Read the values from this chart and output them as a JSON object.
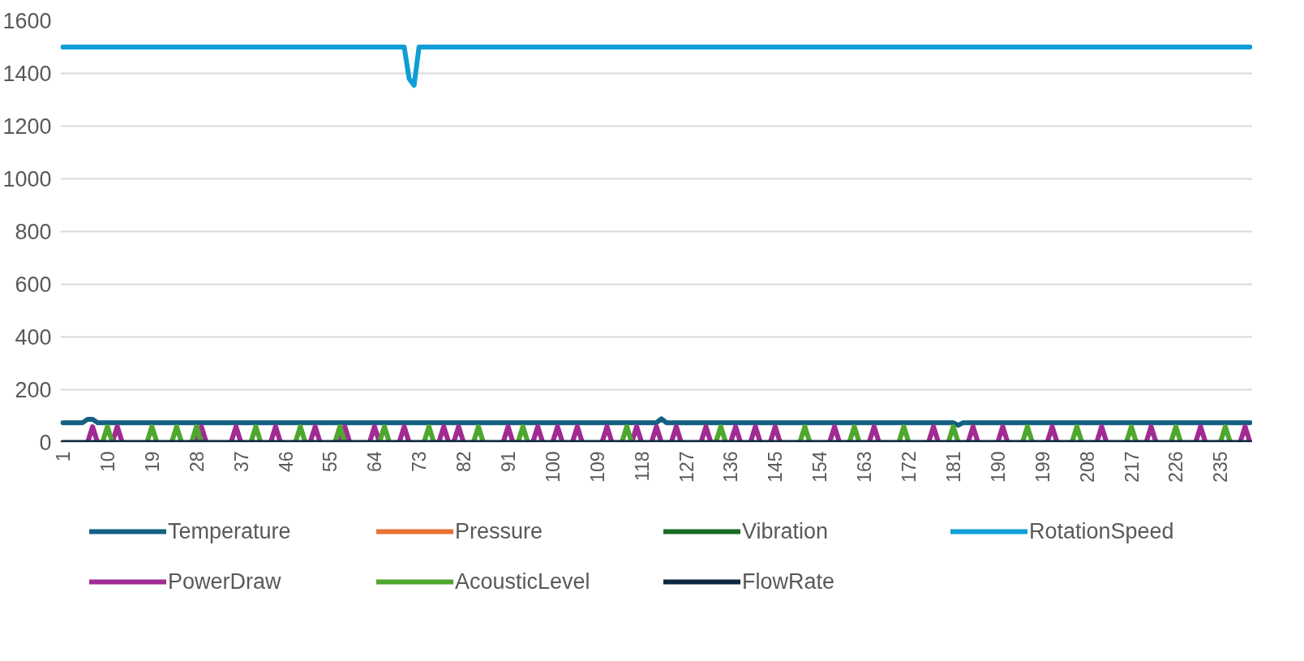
{
  "chart_data": {
    "type": "line",
    "categories": [
      "1",
      null,
      null,
      null,
      null,
      null,
      null,
      null,
      null,
      "10",
      null,
      null,
      null,
      null,
      null,
      null,
      null,
      null,
      "19",
      null,
      null,
      null,
      null,
      null,
      null,
      null,
      null,
      "28",
      null,
      null,
      null,
      null,
      null,
      null,
      null,
      null,
      "37",
      null,
      null,
      null,
      null,
      null,
      null,
      null,
      null,
      "46",
      null,
      null,
      null,
      null,
      null,
      null,
      null,
      null,
      "55",
      null,
      null,
      null,
      null,
      null,
      null,
      null,
      null,
      "64",
      null,
      null,
      null,
      null,
      null,
      null,
      null,
      null,
      "73",
      null,
      null,
      null,
      null,
      null,
      null,
      null,
      null,
      "82",
      null,
      null,
      null,
      null,
      null,
      null,
      null,
      null,
      "91",
      null,
      null,
      null,
      null,
      null,
      null,
      null,
      null,
      "100",
      null,
      null,
      null,
      null,
      null,
      null,
      null,
      null,
      "109",
      null,
      null,
      null,
      null,
      null,
      null,
      null,
      null,
      "118",
      null,
      null,
      null,
      null,
      null,
      null,
      null,
      null,
      "127",
      null,
      null,
      null,
      null,
      null,
      null,
      null,
      null,
      "136",
      null,
      null,
      null,
      null,
      null,
      null,
      null,
      null,
      "145",
      null,
      null,
      null,
      null,
      null,
      null,
      null,
      null,
      "154",
      null,
      null,
      null,
      null,
      null,
      null,
      null,
      null,
      "163",
      null,
      null,
      null,
      null,
      null,
      null,
      null,
      null,
      "172",
      null,
      null,
      null,
      null,
      null,
      null,
      null,
      null,
      "181",
      null,
      null,
      null,
      null,
      null,
      null,
      null,
      null,
      "190",
      null,
      null,
      null,
      null,
      null,
      null,
      null,
      null,
      "199",
      null,
      null,
      null,
      null,
      null,
      null,
      null,
      null,
      "208",
      null,
      null,
      null,
      null,
      null,
      null,
      null,
      null,
      "217",
      null,
      null,
      null,
      null,
      null,
      null,
      null,
      null,
      "226",
      null,
      null,
      null,
      null,
      null,
      null,
      null,
      null,
      "235",
      null,
      null,
      null,
      null,
      null,
      null
    ],
    "ylim": [
      0,
      1600
    ],
    "yticks": [
      0,
      200,
      400,
      600,
      800,
      1000,
      1200,
      1400,
      1600
    ],
    "grid": "y",
    "legend": "bottom",
    "line_style": "solid",
    "series": [
      {
        "name": "Temperature",
        "color": "#156082",
        "values": [
          75,
          75,
          75,
          75,
          75,
          88,
          88,
          75,
          75,
          75,
          75,
          75,
          75,
          75,
          75,
          75,
          75,
          75,
          75,
          75,
          75,
          75,
          75,
          75,
          75,
          75,
          75,
          75,
          75,
          75,
          75,
          75,
          75,
          75,
          75,
          75,
          75,
          75,
          75,
          75,
          75,
          75,
          75,
          75,
          75,
          75,
          75,
          75,
          75,
          75,
          75,
          75,
          75,
          75,
          75,
          75,
          75,
          75,
          75,
          75,
          75,
          75,
          75,
          75,
          75,
          75,
          75,
          75,
          75,
          75,
          75,
          75,
          75,
          75,
          75,
          75,
          75,
          75,
          75,
          75,
          75,
          75,
          75,
          75,
          75,
          75,
          75,
          75,
          75,
          75,
          75,
          75,
          75,
          75,
          75,
          75,
          75,
          75,
          75,
          75,
          75,
          75,
          75,
          75,
          75,
          75,
          75,
          75,
          75,
          75,
          75,
          75,
          75,
          75,
          75,
          75,
          75,
          75,
          75,
          75,
          75,
          90,
          75,
          75,
          75,
          75,
          75,
          75,
          75,
          75,
          75,
          75,
          75,
          75,
          75,
          75,
          75,
          75,
          75,
          75,
          75,
          75,
          75,
          75,
          75,
          75,
          75,
          75,
          75,
          75,
          75,
          75,
          75,
          75,
          75,
          75,
          75,
          75,
          75,
          75,
          75,
          75,
          75,
          75,
          75,
          75,
          75,
          75,
          75,
          75,
          75,
          75,
          75,
          75,
          75,
          75,
          75,
          75,
          75,
          75,
          75,
          65,
          75,
          75,
          75,
          75,
          75,
          75,
          75,
          75,
          75,
          75,
          75,
          75,
          75,
          75,
          75,
          75,
          75,
          75,
          75,
          75,
          75,
          75,
          75,
          75,
          75,
          75,
          75,
          75,
          75,
          75,
          75,
          75,
          75,
          75,
          75,
          75,
          75,
          75,
          75,
          75,
          75,
          75,
          75,
          75,
          75,
          75,
          75,
          75,
          75,
          75,
          75,
          75,
          75,
          75,
          75,
          75,
          75,
          75,
          75
        ]
      },
      {
        "name": "Pressure",
        "color": "#e97132",
        "values": [
          null,
          null,
          null,
          null,
          null,
          null,
          null,
          null,
          null,
          null,
          null,
          null,
          null,
          null,
          null,
          null,
          null,
          null,
          null,
          null,
          null,
          null,
          null,
          null,
          null,
          null,
          null,
          null,
          null,
          null,
          null,
          null,
          null,
          null,
          null,
          null,
          null,
          null,
          null,
          null,
          null,
          null,
          null,
          null,
          null,
          null,
          null,
          null,
          null,
          null,
          null,
          null,
          null,
          null,
          null,
          null,
          null,
          null,
          null,
          null,
          null,
          null,
          null,
          null,
          null,
          null,
          null,
          null,
          null,
          null,
          null,
          null,
          null,
          null,
          null,
          null,
          null,
          null,
          null,
          null,
          null,
          null,
          null,
          null,
          null,
          null,
          null,
          null,
          null,
          null,
          null,
          null,
          null,
          null,
          null,
          null,
          null,
          null,
          null,
          null,
          null,
          null,
          null,
          null,
          null,
          null,
          null,
          null,
          null,
          null,
          null,
          null,
          null,
          null,
          null,
          null,
          null,
          null,
          null,
          null,
          null,
          null,
          null,
          null,
          null,
          null,
          null,
          null,
          null,
          null,
          null,
          null,
          null,
          null,
          null,
          null,
          null,
          null,
          null,
          null,
          null,
          null,
          null,
          null,
          null,
          null,
          null,
          null,
          null,
          null,
          null,
          null,
          null,
          null,
          null,
          null,
          null,
          null,
          null,
          null,
          null,
          null,
          null,
          null,
          null,
          null,
          null,
          null,
          null,
          null,
          null,
          null,
          null,
          null,
          null,
          null,
          null,
          null,
          null,
          null,
          null,
          null,
          null,
          null,
          null,
          null,
          null,
          null,
          null,
          null,
          null,
          null,
          null,
          null,
          null,
          null,
          null,
          null,
          null,
          null,
          null,
          null,
          null,
          null,
          null,
          null,
          null,
          null,
          null,
          null,
          null,
          null,
          null,
          null,
          null,
          null,
          null,
          null,
          null,
          null,
          null,
          null,
          null,
          null,
          null,
          null,
          null,
          null,
          null,
          null,
          null,
          null,
          null,
          null,
          null,
          null,
          null,
          null,
          null,
          null,
          null
        ]
      },
      {
        "name": "Vibration",
        "color": "#196b24",
        "values": [
          null,
          null,
          null,
          null,
          null,
          null,
          null,
          null,
          null,
          null,
          null,
          null,
          null,
          null,
          null,
          null,
          null,
          null,
          null,
          null,
          null,
          null,
          null,
          null,
          null,
          null,
          null,
          null,
          null,
          null,
          null,
          null,
          null,
          null,
          null,
          null,
          null,
          null,
          null,
          null,
          null,
          null,
          null,
          null,
          null,
          null,
          null,
          null,
          null,
          null,
          null,
          null,
          null,
          null,
          null,
          null,
          null,
          null,
          null,
          null,
          null,
          null,
          null,
          null,
          null,
          null,
          null,
          null,
          null,
          null,
          null,
          null,
          null,
          null,
          null,
          null,
          null,
          null,
          null,
          null,
          null,
          null,
          null,
          null,
          null,
          null,
          null,
          null,
          null,
          null,
          null,
          null,
          null,
          null,
          null,
          null,
          null,
          null,
          null,
          null,
          null,
          null,
          null,
          null,
          null,
          null,
          null,
          null,
          null,
          null,
          null,
          null,
          null,
          null,
          null,
          null,
          null,
          null,
          null,
          null,
          null,
          null,
          null,
          null,
          null,
          null,
          null,
          null,
          null,
          null,
          null,
          null,
          null,
          null,
          null,
          null,
          null,
          null,
          null,
          null,
          null,
          null,
          null,
          null,
          null,
          null,
          null,
          null,
          null,
          null,
          null,
          null,
          null,
          null,
          null,
          null,
          null,
          null,
          null,
          null,
          null,
          null,
          null,
          null,
          null,
          null,
          null,
          null,
          null,
          null,
          null,
          null,
          null,
          null,
          null,
          null,
          null,
          null,
          null,
          null,
          null,
          null,
          null,
          null,
          null,
          null,
          null,
          null,
          null,
          null,
          null,
          null,
          null,
          null,
          null,
          null,
          null,
          null,
          null,
          null,
          null,
          null,
          null,
          null,
          null,
          null,
          null,
          null,
          null,
          null,
          null,
          null,
          null,
          null,
          null,
          null,
          null,
          null,
          null,
          null,
          null,
          null,
          null,
          null,
          null,
          null,
          null,
          null,
          null,
          null,
          null,
          null,
          null,
          null,
          null,
          null,
          null,
          null,
          null,
          null,
          null
        ]
      },
      {
        "name": "RotationSpeed",
        "color": "#0f9ed5",
        "values": [
          1500,
          1500,
          1500,
          1500,
          1500,
          1500,
          1500,
          1500,
          1500,
          1500,
          1500,
          1500,
          1500,
          1500,
          1500,
          1500,
          1500,
          1500,
          1500,
          1500,
          1500,
          1500,
          1500,
          1500,
          1500,
          1500,
          1500,
          1500,
          1500,
          1500,
          1500,
          1500,
          1500,
          1500,
          1500,
          1500,
          1500,
          1500,
          1500,
          1500,
          1500,
          1500,
          1500,
          1500,
          1500,
          1500,
          1500,
          1500,
          1500,
          1500,
          1500,
          1500,
          1500,
          1500,
          1500,
          1500,
          1500,
          1500,
          1500,
          1500,
          1500,
          1500,
          1500,
          1500,
          1500,
          1500,
          1500,
          1500,
          1500,
          1500,
          1380,
          1355,
          1500,
          1500,
          1500,
          1500,
          1500,
          1500,
          1500,
          1500,
          1500,
          1500,
          1500,
          1500,
          1500,
          1500,
          1500,
          1500,
          1500,
          1500,
          1500,
          1500,
          1500,
          1500,
          1500,
          1500,
          1500,
          1500,
          1500,
          1500,
          1500,
          1500,
          1500,
          1500,
          1500,
          1500,
          1500,
          1500,
          1500,
          1500,
          1500,
          1500,
          1500,
          1500,
          1500,
          1500,
          1500,
          1500,
          1500,
          1500,
          1500,
          1500,
          1500,
          1500,
          1500,
          1500,
          1500,
          1500,
          1500,
          1500,
          1500,
          1500,
          1500,
          1500,
          1500,
          1500,
          1500,
          1500,
          1500,
          1500,
          1500,
          1500,
          1500,
          1500,
          1500,
          1500,
          1500,
          1500,
          1500,
          1500,
          1500,
          1500,
          1500,
          1500,
          1500,
          1500,
          1500,
          1500,
          1500,
          1500,
          1500,
          1500,
          1500,
          1500,
          1500,
          1500,
          1500,
          1500,
          1500,
          1500,
          1500,
          1500,
          1500,
          1500,
          1500,
          1500,
          1500,
          1500,
          1500,
          1500,
          1500,
          1500,
          1500,
          1500,
          1500,
          1500,
          1500,
          1500,
          1500,
          1500,
          1500,
          1500,
          1500,
          1500,
          1500,
          1500,
          1500,
          1500,
          1500,
          1500,
          1500,
          1500,
          1500,
          1500,
          1500,
          1500,
          1500,
          1500,
          1500,
          1500,
          1500,
          1500,
          1500,
          1500,
          1500,
          1500,
          1500,
          1500,
          1500,
          1500,
          1500,
          1500,
          1500,
          1500,
          1500,
          1500,
          1500,
          1500,
          1500,
          1500,
          1500,
          1500,
          1500,
          1500,
          1500,
          1500,
          1500,
          1500,
          1500,
          1500,
          1500
        ]
      },
      {
        "name": "PowerDraw",
        "color": "#a02b93",
        "values": [
          null,
          null,
          null,
          null,
          null,
          0,
          60,
          0,
          null,
          null,
          0,
          60,
          0,
          null,
          null,
          null,
          null,
          null,
          null,
          null,
          null,
          null,
          null,
          null,
          null,
          null,
          null,
          0,
          60,
          0,
          null,
          null,
          null,
          null,
          0,
          60,
          0,
          null,
          null,
          null,
          null,
          null,
          0,
          60,
          0,
          null,
          null,
          null,
          null,
          null,
          0,
          60,
          0,
          null,
          null,
          null,
          0,
          60,
          0,
          null,
          null,
          null,
          0,
          60,
          0,
          null,
          null,
          null,
          0,
          60,
          0,
          null,
          null,
          null,
          null,
          null,
          0,
          60,
          0,
          0,
          60,
          0,
          null,
          null,
          null,
          null,
          null,
          null,
          null,
          0,
          60,
          0,
          null,
          null,
          null,
          0,
          60,
          0,
          null,
          0,
          60,
          0,
          null,
          0,
          60,
          0,
          null,
          null,
          null,
          0,
          60,
          0,
          null,
          null,
          null,
          0,
          60,
          0,
          null,
          0,
          60,
          0,
          null,
          0,
          60,
          0,
          null,
          null,
          null,
          0,
          60,
          0,
          null,
          null,
          null,
          0,
          60,
          0,
          null,
          0,
          60,
          0,
          null,
          0,
          60,
          0,
          null,
          null,
          null,
          null,
          null,
          null,
          null,
          null,
          null,
          0,
          60,
          0,
          null,
          null,
          null,
          null,
          null,
          0,
          60,
          0,
          null,
          null,
          null,
          null,
          null,
          null,
          null,
          null,
          null,
          0,
          60,
          0,
          null,
          null,
          null,
          null,
          null,
          0,
          60,
          0,
          null,
          null,
          null,
          0,
          60,
          0,
          null,
          null,
          null,
          null,
          null,
          null,
          null,
          0,
          60,
          0,
          null,
          null,
          null,
          null,
          null,
          null,
          null,
          0,
          60,
          0,
          null,
          null,
          null,
          null,
          null,
          null,
          null,
          0,
          60,
          0,
          null,
          null,
          null,
          null,
          null,
          null,
          null,
          0,
          60,
          0,
          null,
          null,
          null,
          null,
          null,
          null,
          0,
          60,
          0
        ]
      },
      {
        "name": "AcousticLevel",
        "color": "#4ea72e",
        "values": [
          null,
          null,
          null,
          null,
          null,
          null,
          null,
          null,
          0,
          60,
          0,
          null,
          null,
          null,
          null,
          null,
          null,
          0,
          60,
          0,
          null,
          null,
          0,
          60,
          0,
          null,
          0,
          60,
          0,
          null,
          null,
          null,
          null,
          null,
          null,
          null,
          null,
          null,
          0,
          60,
          0,
          null,
          null,
          null,
          null,
          null,
          null,
          0,
          60,
          0,
          null,
          null,
          null,
          null,
          null,
          0,
          60,
          0,
          null,
          null,
          null,
          null,
          null,
          null,
          0,
          60,
          0,
          null,
          null,
          null,
          null,
          null,
          null,
          0,
          60,
          0,
          null,
          null,
          null,
          null,
          null,
          null,
          null,
          0,
          60,
          0,
          null,
          null,
          null,
          null,
          null,
          null,
          0,
          60,
          0,
          null,
          null,
          null,
          null,
          null,
          null,
          null,
          null,
          null,
          null,
          null,
          null,
          null,
          null,
          null,
          null,
          null,
          null,
          0,
          60,
          0,
          null,
          null,
          null,
          null,
          null,
          null,
          null,
          null,
          null,
          null,
          null,
          null,
          null,
          null,
          null,
          null,
          0,
          60,
          0,
          null,
          null,
          null,
          null,
          null,
          null,
          null,
          null,
          null,
          null,
          null,
          null,
          null,
          null,
          0,
          60,
          0,
          null,
          null,
          null,
          null,
          null,
          null,
          null,
          0,
          60,
          0,
          null,
          null,
          null,
          null,
          null,
          null,
          null,
          0,
          60,
          0,
          null,
          null,
          null,
          null,
          null,
          null,
          null,
          0,
          60,
          0,
          null,
          null,
          null,
          null,
          null,
          null,
          null,
          null,
          null,
          null,
          null,
          null,
          0,
          60,
          0,
          null,
          null,
          null,
          null,
          null,
          null,
          null,
          0,
          60,
          0,
          null,
          null,
          null,
          null,
          null,
          null,
          null,
          null,
          0,
          60,
          0,
          null,
          null,
          null,
          null,
          null,
          null,
          0,
          60,
          0,
          null,
          null,
          null,
          null,
          null,
          null,
          null,
          0,
          60,
          0,
          null,
          null,
          null,
          null
        ]
      },
      {
        "name": "FlowRate",
        "color": "#0e2841",
        "values": [
          0,
          0,
          0,
          0,
          0,
          0,
          0,
          0,
          0,
          0,
          0,
          0,
          0,
          0,
          0,
          0,
          0,
          0,
          0,
          0,
          0,
          0,
          0,
          0,
          0,
          0,
          0,
          0,
          0,
          0,
          0,
          0,
          0,
          0,
          0,
          0,
          0,
          0,
          0,
          0,
          0,
          0,
          0,
          0,
          0,
          0,
          0,
          0,
          0,
          0,
          0,
          0,
          0,
          0,
          0,
          0,
          0,
          0,
          0,
          0,
          0,
          0,
          0,
          0,
          0,
          0,
          0,
          0,
          0,
          0,
          0,
          0,
          0,
          0,
          0,
          0,
          0,
          0,
          0,
          0,
          0,
          0,
          0,
          0,
          0,
          0,
          0,
          0,
          0,
          0,
          0,
          0,
          0,
          0,
          0,
          0,
          0,
          0,
          0,
          0,
          0,
          0,
          0,
          0,
          0,
          0,
          0,
          0,
          0,
          0,
          0,
          0,
          0,
          0,
          0,
          0,
          0,
          0,
          0,
          0,
          0,
          0,
          0,
          0,
          0,
          0,
          0,
          0,
          0,
          0,
          0,
          0,
          0,
          0,
          0,
          0,
          0,
          0,
          0,
          0,
          0,
          0,
          0,
          0,
          0,
          0,
          0,
          0,
          0,
          0,
          0,
          0,
          0,
          0,
          0,
          0,
          0,
          0,
          0,
          0,
          0,
          0,
          0,
          0,
          0,
          0,
          0,
          0,
          0,
          0,
          0,
          0,
          0,
          0,
          0,
          0,
          0,
          0,
          0,
          0,
          0,
          0,
          0,
          0,
          0,
          0,
          0,
          0,
          0,
          0,
          0,
          0,
          0,
          0,
          0,
          0,
          0,
          0,
          0,
          0,
          0,
          0,
          0,
          0,
          0,
          0,
          0,
          0,
          0,
          0,
          0,
          0,
          0,
          0,
          0,
          0,
          0,
          0,
          0,
          0,
          0,
          0,
          0,
          0,
          0,
          0,
          0,
          0,
          0,
          0,
          0,
          0,
          0,
          0,
          0,
          0,
          0,
          0,
          0,
          0,
          0
        ]
      }
    ]
  }
}
